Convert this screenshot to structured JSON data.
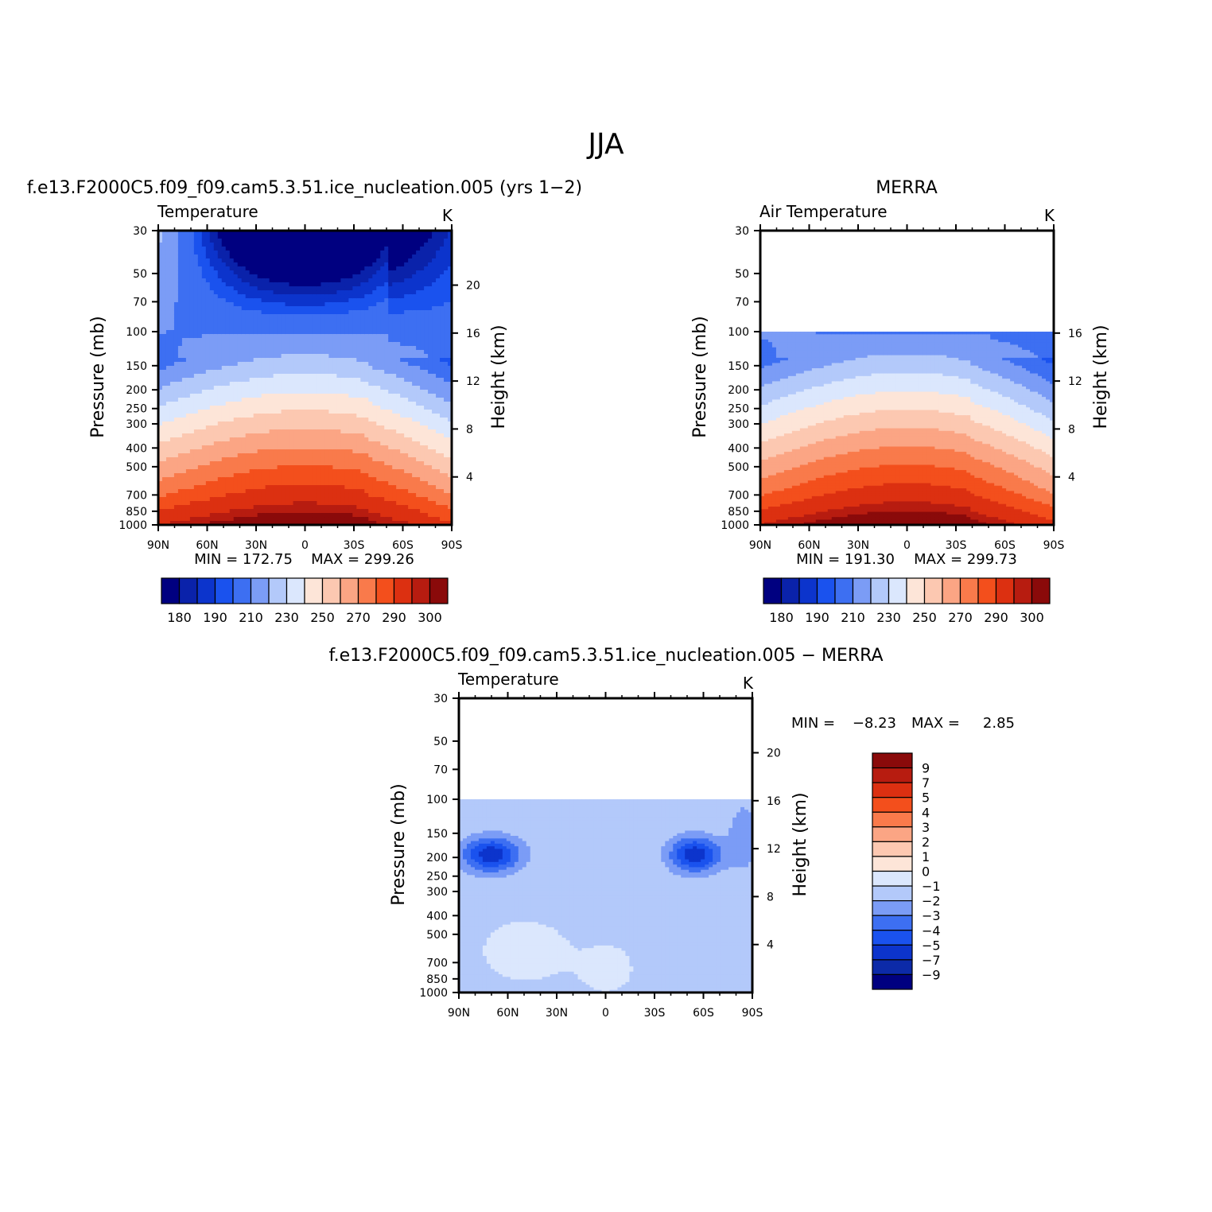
{
  "page": {
    "title": "JJA"
  },
  "colors": {
    "palette_14": [
      "#000080",
      "#0a22aa",
      "#0c34cc",
      "#1a52ee",
      "#3d6ff2",
      "#7b9cf6",
      "#b3c9fa",
      "#dbe7fd",
      "#fde5d8",
      "#fcc8b1",
      "#fba584",
      "#f97a4b",
      "#f34f1c",
      "#dc3011",
      "#b71c10",
      "#8a0a0a"
    ],
    "white": "#ffffff"
  },
  "chart_data": [
    {
      "type": "heatmap",
      "subtype": "zonal-mean pressure-latitude contour",
      "title": "f.e13.F2000C5.f09_f09.cam5.3.51.ice_nucleation.005 (yrs 1−2)",
      "subtitle_left": "Temperature",
      "subtitle_right": "K",
      "xlabel": "",
      "ylabel": "Pressure (mb)",
      "ylabel_right": "Height (km)",
      "x_ticks": [
        "90N",
        "60N",
        "30N",
        "0",
        "30S",
        "60S",
        "90S"
      ],
      "x": [
        90,
        60,
        30,
        0,
        -30,
        -60,
        -90
      ],
      "y_ticks": [
        30,
        50,
        70,
        100,
        150,
        200,
        250,
        300,
        400,
        500,
        700,
        850,
        1000
      ],
      "y_right_ticks": [
        20,
        16,
        12,
        8,
        4
      ],
      "ylim": [
        1000,
        30
      ],
      "y_scale": "log",
      "min_label": "MIN = 172.75",
      "max_label": "MAX = 299.26",
      "min": 172.75,
      "max": 299.26,
      "colorbar": {
        "orientation": "horizontal",
        "tick_labels": [
          "180",
          "190",
          "210",
          "230",
          "250",
          "270",
          "290",
          "300"
        ],
        "levels": [
          175,
          180,
          185,
          190,
          200,
          210,
          220,
          230,
          240,
          250,
          260,
          270,
          280,
          290,
          295,
          300
        ]
      },
      "valid_top_mb": 30
    },
    {
      "type": "heatmap",
      "subtype": "zonal-mean pressure-latitude contour",
      "title": "MERRA",
      "subtitle_left": "Air Temperature",
      "subtitle_right": "K",
      "ylabel": "Pressure (mb)",
      "ylabel_right": "Height (km)",
      "x_ticks": [
        "90N",
        "60N",
        "30N",
        "0",
        "30S",
        "60S",
        "90S"
      ],
      "x": [
        90,
        60,
        30,
        0,
        -30,
        -60,
        -90
      ],
      "y_ticks": [
        30,
        50,
        70,
        100,
        150,
        200,
        250,
        300,
        400,
        500,
        700,
        850,
        1000
      ],
      "y_right_ticks": [
        16,
        12,
        8,
        4
      ],
      "ylim": [
        1000,
        30
      ],
      "y_scale": "log",
      "min_label": "MIN = 191.30",
      "max_label": "MAX = 299.73",
      "min": 191.3,
      "max": 299.73,
      "colorbar": {
        "orientation": "horizontal",
        "tick_labels": [
          "180",
          "190",
          "210",
          "230",
          "250",
          "270",
          "290",
          "300"
        ],
        "levels": [
          175,
          180,
          185,
          190,
          200,
          210,
          220,
          230,
          240,
          250,
          260,
          270,
          280,
          290,
          295,
          300
        ]
      },
      "valid_top_mb": 100
    },
    {
      "type": "heatmap",
      "subtype": "zonal-mean pressure-latitude difference contour",
      "title": "f.e13.F2000C5.f09_f09.cam5.3.51.ice_nucleation.005 − MERRA",
      "subtitle_left": "Temperature",
      "subtitle_right": "K",
      "ylabel": "Pressure (mb)",
      "ylabel_right": "Height (km)",
      "x_ticks": [
        "90N",
        "60N",
        "30N",
        "0",
        "30S",
        "60S",
        "90S"
      ],
      "x": [
        90,
        60,
        30,
        0,
        -30,
        -60,
        -90
      ],
      "y_ticks": [
        30,
        50,
        70,
        100,
        150,
        200,
        250,
        300,
        400,
        500,
        700,
        850,
        1000
      ],
      "y_right_ticks": [
        20,
        16,
        12,
        8,
        4
      ],
      "ylim": [
        1000,
        30
      ],
      "y_scale": "log",
      "min_label": "MIN =",
      "min_value": "−8.23",
      "max_label": "MAX =",
      "max_value": "2.85",
      "min": -8.23,
      "max": 2.85,
      "colorbar": {
        "orientation": "vertical",
        "tick_labels": [
          "9",
          "7",
          "5",
          "4",
          "3",
          "2",
          "1",
          "0",
          "−1",
          "−2",
          "−3",
          "−4",
          "−5",
          "−7",
          "−9"
        ],
        "levels": [
          9,
          7,
          5,
          4,
          3,
          2,
          1,
          0,
          -1,
          -2,
          -3,
          -4,
          -5,
          -7,
          -9
        ]
      },
      "valid_top_mb": 100
    }
  ]
}
